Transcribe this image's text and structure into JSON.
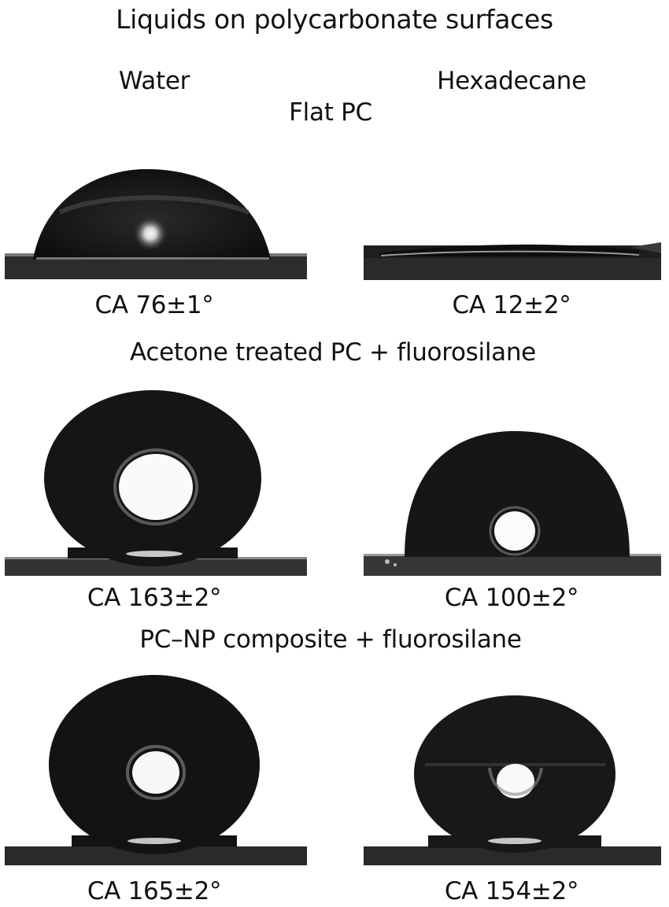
{
  "figure": {
    "title": "Liquids on polycarbonate surfaces",
    "columns": {
      "left": "Water",
      "right": "Hexadecane"
    },
    "sections": [
      {
        "label": "Flat  PC",
        "water_ca": "CA 76±1°",
        "hexadecane_ca": "CA 12±2°"
      },
      {
        "label": "Acetone treated PC + fluorosilane",
        "water_ca": "CA 163±2°",
        "hexadecane_ca": "CA 100±2°"
      },
      {
        "label": "PC–NP composite + fluorosilane",
        "water_ca": "CA 165±2°",
        "hexadecane_ca": "CA 154±2°"
      }
    ]
  }
}
